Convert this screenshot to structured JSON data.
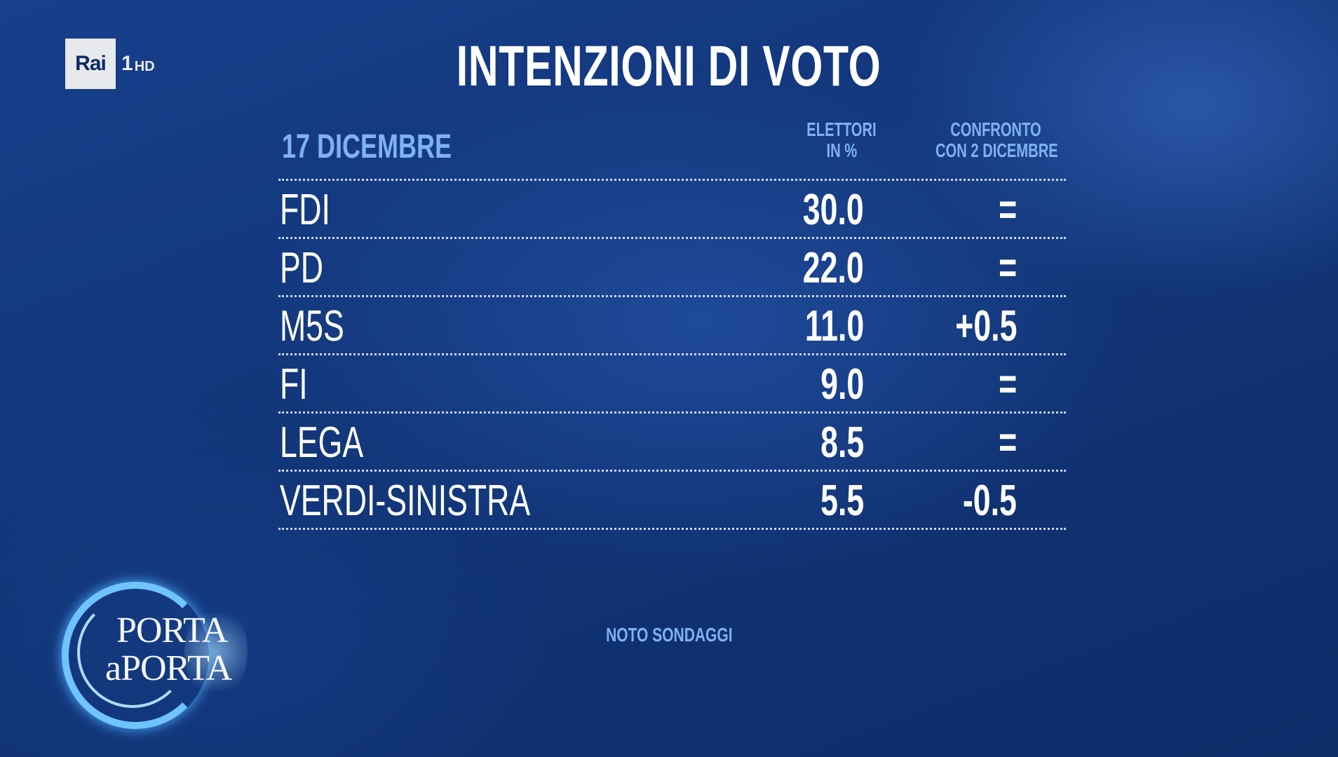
{
  "channel": {
    "brand": "Rai",
    "number": "1",
    "quality": "HD"
  },
  "title": "INTENZIONI DI VOTO",
  "table": {
    "date_label": "17 DICEMBRE",
    "col_elettori": [
      "ELETTORI",
      "IN %"
    ],
    "col_confronto": [
      "CONFRONTO",
      "CON 2 DICEMBRE"
    ],
    "rows": [
      {
        "party": "FDI",
        "value": "30.0",
        "delta": "="
      },
      {
        "party": "PD",
        "value": "22.0",
        "delta": "="
      },
      {
        "party": "M5S",
        "value": "11.0",
        "delta": "+0.5"
      },
      {
        "party": "FI",
        "value": "9.0",
        "delta": "="
      },
      {
        "party": "LEGA",
        "value": "8.5",
        "delta": "="
      },
      {
        "party": "VERDI-SINISTRA",
        "value": "5.5",
        "delta": "-0.5"
      }
    ]
  },
  "source": "NOTO SONDAGGI",
  "show_logo": {
    "line1": "PORTA",
    "line2": "aPORTA"
  }
}
